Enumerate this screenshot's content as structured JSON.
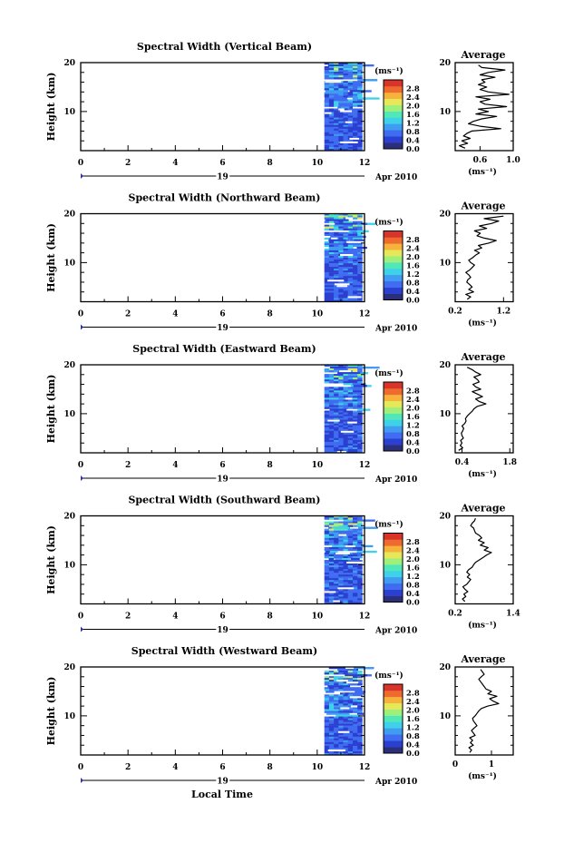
{
  "figure": {
    "xlabel": "Local Time",
    "date_day": "19",
    "date_month": "Apr 2010",
    "unit": "(ms⁻¹)"
  },
  "colorbar": {
    "ticks": [
      "0.0",
      "0.4",
      "0.8",
      "1.2",
      "1.6",
      "2.0",
      "2.4",
      "2.8"
    ],
    "range": [
      0,
      3.2
    ],
    "colors": [
      "#2b2f7a",
      "#2b3fd0",
      "#3f6cf0",
      "#3f9cf0",
      "#3fd0ea",
      "#50e8b8",
      "#9ef07a",
      "#e6e85a",
      "#f7b23b",
      "#ef6a2f",
      "#d8342a"
    ]
  },
  "chart_data": [
    {
      "type": "heatmap",
      "title": "Spectral Width (Vertical Beam)",
      "ylabel": "Height (km)",
      "xlim": [
        0,
        12
      ],
      "ylim": [
        2,
        20
      ],
      "x_ticks": [
        "0",
        "2",
        "4",
        "6",
        "8",
        "10",
        "12"
      ],
      "y_ticks": [
        "10",
        "20"
      ],
      "data_time_range": [
        10.3,
        11.9
      ],
      "average": {
        "title": "Average",
        "xlim": [
          0.3,
          1.0
        ],
        "x_ticks": [
          "0.6",
          "1.0"
        ],
        "xlabel": "(ms⁻¹)",
        "height": [
          2.5,
          3,
          3.5,
          4,
          4.5,
          5,
          5.5,
          6,
          6.5,
          7,
          7.5,
          8,
          8.5,
          9,
          9.5,
          10,
          10.5,
          11,
          11.5,
          12,
          12.5,
          13,
          13.5,
          14,
          14.5,
          15,
          15.5,
          16,
          16.5,
          17,
          17.5,
          18,
          18.5,
          19,
          19.5
        ],
        "value": [
          0.42,
          0.35,
          0.45,
          0.38,
          0.48,
          0.4,
          0.44,
          0.5,
          0.85,
          0.6,
          0.46,
          0.52,
          0.62,
          0.8,
          0.55,
          0.7,
          0.58,
          0.92,
          0.66,
          0.6,
          0.72,
          0.55,
          0.95,
          0.7,
          0.6,
          0.68,
          0.58,
          0.66,
          0.62,
          0.78,
          0.6,
          0.7,
          0.9,
          0.62,
          0.58
        ]
      }
    },
    {
      "type": "heatmap",
      "title": "Spectral Width (Northward Beam)",
      "ylabel": "Height (km)",
      "xlim": [
        0,
        12
      ],
      "ylim": [
        2,
        20
      ],
      "x_ticks": [
        "0",
        "2",
        "4",
        "6",
        "8",
        "10",
        "12"
      ],
      "y_ticks": [
        "10",
        "20"
      ],
      "data_time_range": [
        10.3,
        11.9
      ],
      "average": {
        "title": "Average",
        "xlim": [
          0.2,
          1.4
        ],
        "x_ticks": [
          "0.2",
          "1.2"
        ],
        "xlabel": "(ms⁻¹)",
        "height": [
          2.5,
          3,
          3.5,
          4,
          4.5,
          5,
          5.5,
          6,
          6.5,
          7,
          7.5,
          8,
          8.5,
          9,
          9.5,
          10,
          10.5,
          11,
          11.5,
          12,
          12.5,
          13,
          13.5,
          14,
          14.5,
          15,
          15.5,
          16,
          16.5,
          17,
          17.5,
          18,
          18.5,
          19,
          19.5
        ],
        "value": [
          0.45,
          0.52,
          0.42,
          0.58,
          0.48,
          0.55,
          0.5,
          0.44,
          0.46,
          0.52,
          0.48,
          0.42,
          0.5,
          0.55,
          0.6,
          0.52,
          0.48,
          0.56,
          0.62,
          0.7,
          0.6,
          0.75,
          0.68,
          0.9,
          1.05,
          0.8,
          0.65,
          0.72,
          0.6,
          0.85,
          0.7,
          0.95,
          1.1,
          0.8,
          1.2
        ]
      }
    },
    {
      "type": "heatmap",
      "title": "Spectral Width (Eastward Beam)",
      "ylabel": "Height (km)",
      "xlim": [
        0,
        12
      ],
      "ylim": [
        2,
        20
      ],
      "x_ticks": [
        "0",
        "2",
        "4",
        "6",
        "8",
        "10",
        "12"
      ],
      "y_ticks": [
        "10",
        "20"
      ],
      "data_time_range": [
        10.3,
        11.9
      ],
      "average": {
        "title": "Average",
        "xlim": [
          0.2,
          1.9
        ],
        "x_ticks": [
          "0.4",
          "1.8"
        ],
        "xlabel": "(ms⁻¹)",
        "height": [
          2.5,
          3,
          3.5,
          4,
          4.5,
          5,
          5.5,
          6,
          6.5,
          7,
          7.5,
          8,
          8.5,
          9,
          9.5,
          10,
          10.5,
          11,
          11.5,
          12,
          12.5,
          13,
          13.5,
          14,
          14.5,
          15,
          15.5,
          16,
          16.5,
          17,
          17.5,
          18,
          18.5,
          19,
          19.5
        ],
        "value": [
          0.3,
          0.42,
          0.35,
          0.4,
          0.36,
          0.44,
          0.4,
          0.38,
          0.42,
          0.45,
          0.4,
          0.48,
          0.52,
          0.5,
          0.55,
          0.62,
          0.7,
          0.75,
          0.85,
          1.1,
          0.9,
          0.8,
          1.0,
          0.85,
          0.7,
          0.95,
          0.8,
          0.72,
          0.9,
          0.85,
          0.75,
          0.95,
          0.8,
          0.7,
          0.55
        ]
      }
    },
    {
      "type": "heatmap",
      "title": "Spectral Width (Southward Beam)",
      "ylabel": "Height (km)",
      "xlim": [
        0,
        12
      ],
      "ylim": [
        2,
        20
      ],
      "x_ticks": [
        "0",
        "2",
        "4",
        "6",
        "8",
        "10",
        "12"
      ],
      "y_ticks": [
        "10",
        "20"
      ],
      "data_time_range": [
        10.3,
        11.9
      ],
      "average": {
        "title": "Average",
        "xlim": [
          0.2,
          1.4
        ],
        "x_ticks": [
          "0.2",
          "1.4"
        ],
        "xlabel": "(ms⁻¹)",
        "height": [
          2.5,
          3,
          3.5,
          4,
          4.5,
          5,
          5.5,
          6,
          6.5,
          7,
          7.5,
          8,
          8.5,
          9,
          9.5,
          10,
          10.5,
          11,
          11.5,
          12,
          12.5,
          13,
          13.5,
          14,
          14.5,
          15,
          15.5,
          16,
          16.5,
          17,
          17.5,
          18,
          18.5,
          19,
          19.5
        ],
        "value": [
          0.4,
          0.35,
          0.42,
          0.38,
          0.46,
          0.4,
          0.36,
          0.44,
          0.48,
          0.52,
          0.45,
          0.5,
          0.44,
          0.48,
          0.55,
          0.58,
          0.62,
          0.7,
          0.78,
          0.85,
          0.95,
          0.8,
          0.88,
          0.72,
          0.8,
          0.68,
          0.75,
          0.7,
          0.62,
          0.6,
          0.58,
          0.52,
          0.55,
          0.6,
          0.62
        ]
      }
    },
    {
      "type": "heatmap",
      "title": "Spectral Width (Westward Beam)",
      "ylabel": "Height (km)",
      "xlim": [
        0,
        12
      ],
      "ylim": [
        2,
        20
      ],
      "x_ticks": [
        "0",
        "2",
        "4",
        "6",
        "8",
        "10",
        "12"
      ],
      "y_ticks": [
        "10",
        "20"
      ],
      "data_time_range": [
        10.3,
        11.9
      ],
      "average": {
        "title": "Average",
        "xlim": [
          0,
          1.6
        ],
        "x_ticks": [
          "0",
          "1"
        ],
        "xlabel": "(ms⁻¹)",
        "height": [
          2.5,
          3,
          3.5,
          4,
          4.5,
          5,
          5.5,
          6,
          6.5,
          7,
          7.5,
          8,
          8.5,
          9,
          9.5,
          10,
          10.5,
          11,
          11.5,
          12,
          12.5,
          13,
          13.5,
          14,
          14.5,
          15,
          15.5,
          16,
          16.5,
          17,
          17.5,
          18,
          18.5,
          19,
          19.5
        ],
        "value": [
          0.4,
          0.45,
          0.38,
          0.5,
          0.42,
          0.48,
          0.4,
          0.55,
          0.5,
          0.45,
          0.52,
          0.6,
          0.55,
          0.5,
          0.48,
          0.55,
          0.6,
          0.65,
          0.72,
          0.9,
          1.2,
          1.05,
          0.95,
          1.15,
          0.9,
          1.0,
          0.85,
          0.8,
          0.75,
          0.7,
          0.65,
          0.72,
          0.8,
          0.75,
          0.7
        ]
      }
    }
  ]
}
